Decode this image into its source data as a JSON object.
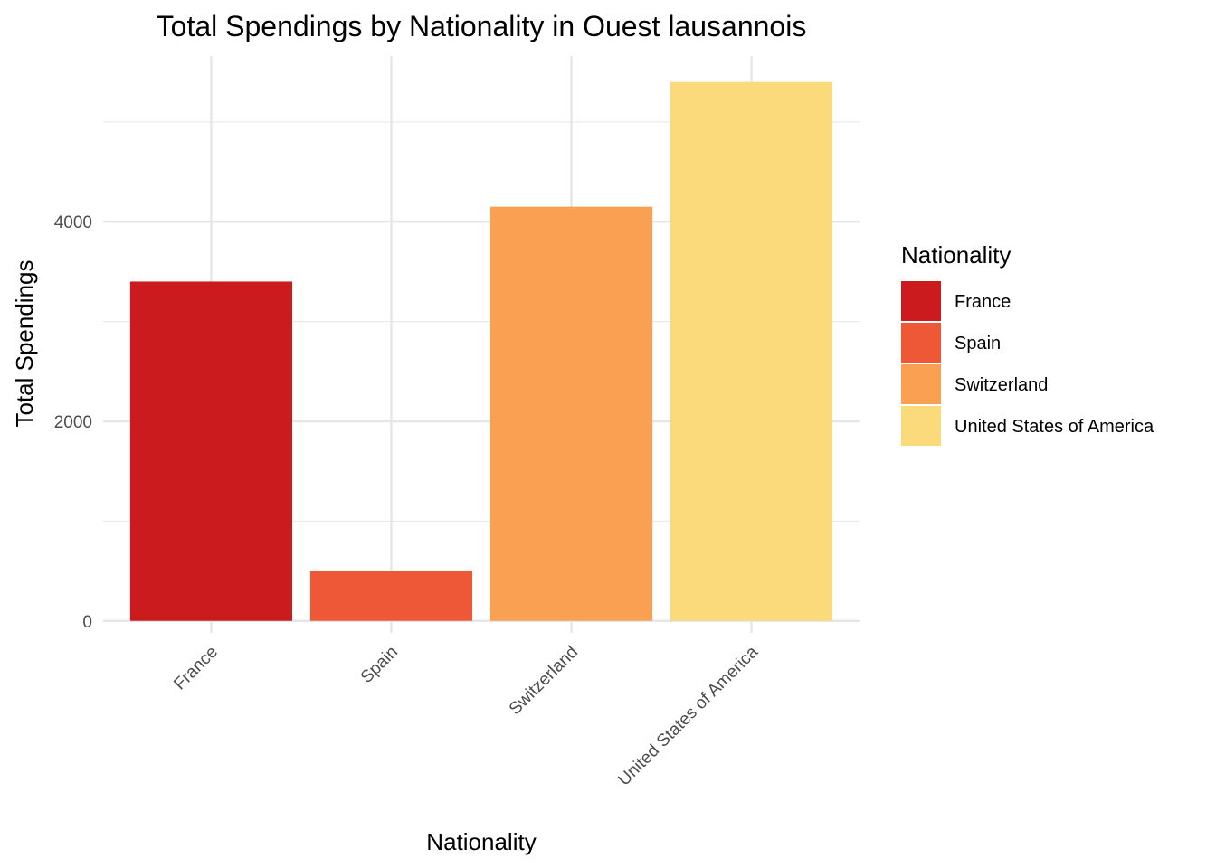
{
  "chart_data": {
    "type": "bar",
    "title": "Total Spendings by Nationality in Ouest lausannois",
    "xlabel": "Nationality",
    "ylabel": "Total Spendings",
    "categories": [
      "France",
      "Spain",
      "Switzerland",
      "United States of America"
    ],
    "values": [
      3400,
      505,
      4150,
      5400
    ],
    "colors": [
      "#CB1B1E",
      "#EF5837",
      "#F9A052",
      "#FADA7A"
    ],
    "ylim": [
      -120,
      5660
    ],
    "yticks": [
      0,
      2000,
      4000
    ],
    "ytick_labels": [
      "0",
      "2000",
      "4000"
    ],
    "y_minor_ticks": [
      1000,
      3000,
      5000
    ],
    "grid": true,
    "legend": {
      "title": "Nationality",
      "placement": "right",
      "entries": [
        "France",
        "Spain",
        "Switzerland",
        "United States of America"
      ]
    }
  }
}
